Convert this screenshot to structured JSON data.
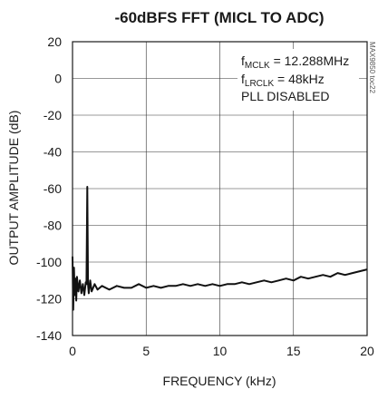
{
  "chart_data": {
    "type": "line",
    "title": "-60dBFS FFT (MICL TO ADC)",
    "xlabel": "FREQUENCY (kHz)",
    "ylabel": "OUTPUT AMPLITUDE (dB)",
    "xlim": [
      0,
      20
    ],
    "ylim": [
      -140,
      20
    ],
    "xticks": [
      0,
      5,
      10,
      15,
      20
    ],
    "yticks": [
      20,
      0,
      -20,
      -40,
      -60,
      -80,
      -100,
      -120,
      -140
    ],
    "grid": true,
    "annotations": {
      "line1_main": "f",
      "line1_sub": "MCLK",
      "line1_rest": " = 12.288MHz",
      "line2_main": "f",
      "line2_sub": "LRCLK",
      "line2_rest": " = 48kHz",
      "line3": "PLL DISABLED"
    },
    "watermark": "MAX9850 toc22",
    "series": [
      {
        "x": [
          0.0,
          0.05,
          0.1,
          0.15,
          0.2,
          0.25,
          0.3,
          0.4,
          0.5,
          0.6,
          0.7,
          0.8,
          0.9,
          0.95,
          1.0,
          1.05,
          1.1,
          1.2,
          1.3,
          1.5,
          1.7,
          2.0,
          2.5,
          3.0,
          3.5,
          4.0,
          4.5,
          5.0,
          5.5,
          6.0,
          6.5,
          7.0,
          7.5,
          8.0,
          8.5,
          9.0,
          9.5,
          10.0,
          10.5,
          11.0,
          11.5,
          12.0,
          12.5,
          13.0,
          13.5,
          14.0,
          14.5,
          15.0,
          15.5,
          16.0,
          16.5,
          17.0,
          17.5,
          18.0,
          18.5,
          19.0,
          19.5,
          20.0
        ],
        "y": [
          -97,
          -126,
          -103,
          -118,
          -109,
          -121,
          -108,
          -116,
          -110,
          -117,
          -112,
          -118,
          -111,
          -112,
          -59,
          -112,
          -117,
          -110,
          -116,
          -112,
          -115,
          -113,
          -115,
          -113,
          -114,
          -114,
          -112,
          -114,
          -113,
          -114,
          -113,
          -113,
          -112,
          -113,
          -112,
          -113,
          -112,
          -113,
          -112,
          -112,
          -111,
          -112,
          -111,
          -110,
          -111,
          -110,
          -109,
          -110,
          -108,
          -109,
          -108,
          -107,
          -108,
          -106,
          -107,
          -106,
          -105,
          -104
        ]
      }
    ]
  }
}
